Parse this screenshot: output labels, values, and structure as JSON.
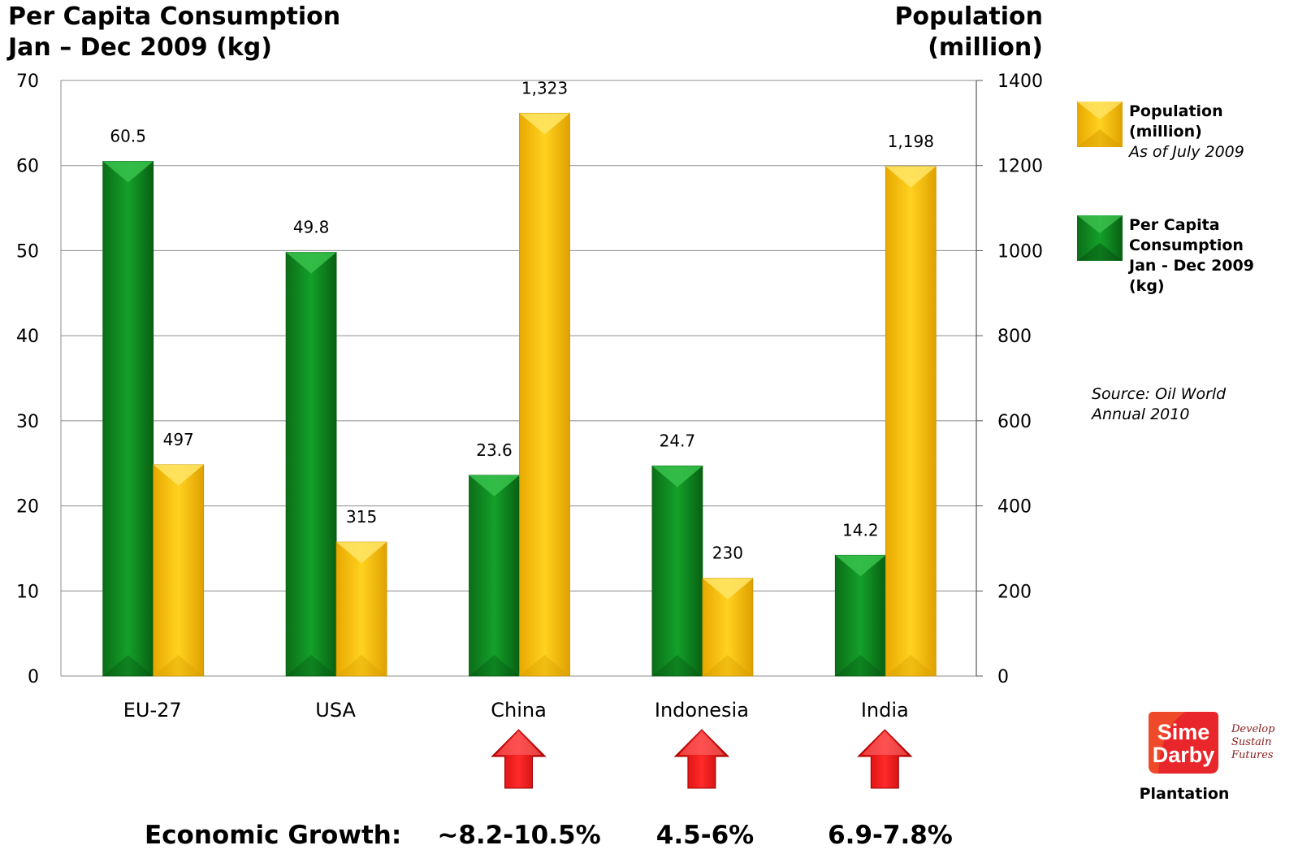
{
  "titles": {
    "left_line1": "Per Capita Consumption",
    "left_line2": "Jan – Dec 2009 (kg)",
    "right_line1": "Population",
    "right_line2": "(million)"
  },
  "legend": {
    "population": {
      "line1": "Population",
      "line2": "(million)",
      "note": "As of July 2009",
      "color": "#FFC000"
    },
    "consumption": {
      "line1": "Per Capita",
      "line2": "Consumption",
      "line3": "Jan - Dec 2009",
      "line4": "(kg)",
      "color": "#0E8A1E"
    }
  },
  "source": {
    "line1": "Source: Oil World",
    "line2": "Annual 2010"
  },
  "economic_growth": {
    "label": "Economic Growth:",
    "values": [
      {
        "country": "China",
        "value": "~8.2-10.5%"
      },
      {
        "country": "Indonesia",
        "value": "4.5-6%"
      },
      {
        "country": "India",
        "value": "6.9-7.8%"
      }
    ],
    "arrow_color": "#FF0000"
  },
  "logo": {
    "line1": "Sime",
    "line2": "Darby",
    "tagline": "Develop\nSustain\nFutures",
    "subtitle": "Plantation"
  },
  "chart_data": {
    "type": "bar",
    "categories": [
      "EU-27",
      "USA",
      "China",
      "Indonesia",
      "India"
    ],
    "series": [
      {
        "name": "Per Capita Consumption Jan - Dec 2009 (kg)",
        "axis": "left",
        "values": [
          60.5,
          49.8,
          23.6,
          24.7,
          14.2
        ],
        "labels": [
          "60.5",
          "49.8",
          "23.6",
          "24.7",
          "14.2"
        ],
        "color": "#0E8A1E"
      },
      {
        "name": "Population (million)",
        "axis": "right",
        "values": [
          497,
          315,
          1323,
          230,
          1198
        ],
        "labels": [
          "497",
          "315",
          "1,323",
          "230",
          "1,198"
        ],
        "color": "#FFC000"
      }
    ],
    "left_axis": {
      "ylim": [
        0,
        70
      ],
      "ticks": [
        "0",
        "10",
        "20",
        "30",
        "40",
        "50",
        "60",
        "70"
      ]
    },
    "right_axis": {
      "ylim": [
        0,
        1400
      ],
      "ticks": [
        "0",
        "200",
        "400",
        "600",
        "800",
        "1000",
        "1200",
        "1400"
      ]
    },
    "grid": true,
    "legend_position": "right"
  }
}
